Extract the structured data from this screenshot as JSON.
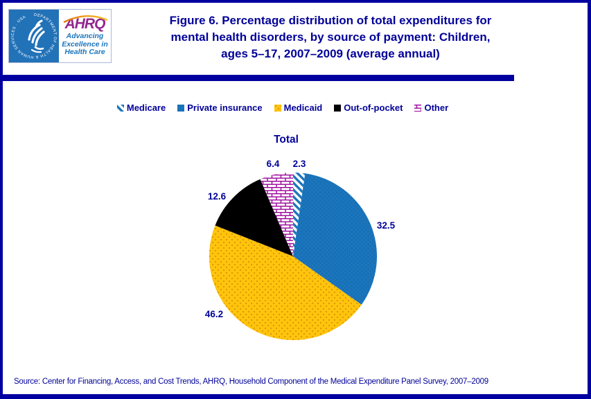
{
  "header": {
    "title_lines": [
      "Figure 6. Percentage distribution of total expenditures for",
      "mental health disorders, by source of payment: Children,",
      "ages 5–17, 2007–2009 (average annual)"
    ]
  },
  "logo": {
    "seal_text": "DEPARTMENT OF HEALTH & HUMAN SERVICES · USA",
    "ahrq": "AHRQ",
    "tagline_lines": [
      "Advancing",
      "Excellence in",
      "Health Care"
    ]
  },
  "chart_data": {
    "type": "pie",
    "title": "Total",
    "categories": [
      "Medicare",
      "Private insurance",
      "Medicaid",
      "Out-of-pocket",
      "Other"
    ],
    "values": [
      2.3,
      32.5,
      46.2,
      12.6,
      6.4
    ],
    "unit": "percent",
    "start_angle_deg": 0,
    "direction": "clockwise",
    "legend_position": "top",
    "slice_styles": [
      "blue-diagonal-stripes-on-white",
      "solid-blue-dotted",
      "gold-dotted",
      "solid-black",
      "magenta-brick-on-white"
    ],
    "label_color": "#000099"
  },
  "footer": {
    "source": "Source: Center for Financing, Access, and Cost Trends, AHRQ, Household Component of the Medical Expenditure Panel Survey,  2007–2009"
  },
  "colors": {
    "navy": "#000099",
    "border_navy": "#0000A0",
    "blue": "#1B75BC",
    "gold": "#FFC40D",
    "black": "#000000",
    "brick_magenta": "#990099",
    "ahrq_purple": "#92278F",
    "hhs_blue": "#2272B8"
  }
}
